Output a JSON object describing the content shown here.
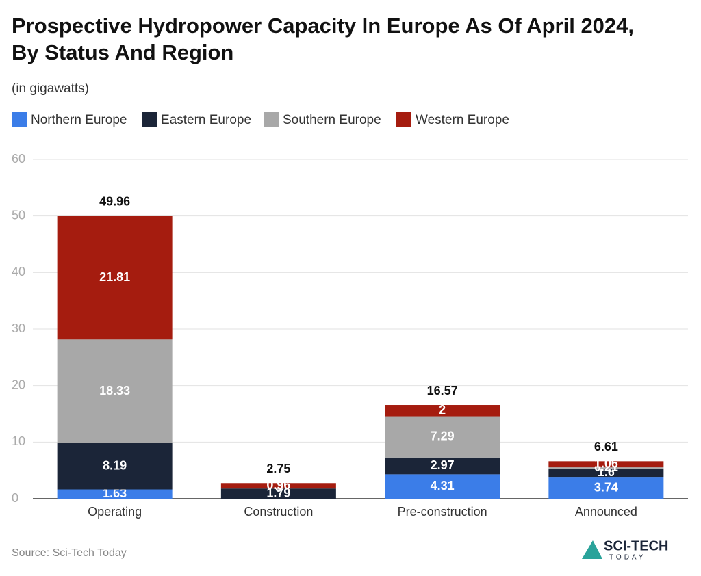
{
  "chart_data": {
    "type": "stacked_bar",
    "title": "Prospective Hydropower Capacity In Europe As Of April 2024, By Status And Region",
    "subtitle": "(in gigawatts)",
    "categories": [
      "Operating",
      "Construction",
      "Pre-construction",
      "Announced"
    ],
    "series": [
      {
        "name": "Northern Europe",
        "color": "#3b7de8",
        "values": [
          1.63,
          0,
          4.31,
          3.74
        ]
      },
      {
        "name": "Eastern Europe",
        "color": "#1b2538",
        "values": [
          8.19,
          1.79,
          2.97,
          1.6
        ]
      },
      {
        "name": "Southern Europe",
        "color": "#a8a8a8",
        "values": [
          18.33,
          0,
          7.29,
          0.21
        ]
      },
      {
        "name": "Western Europe",
        "color": "#a51c0f",
        "values": [
          21.81,
          0.96,
          2,
          1.06
        ]
      }
    ],
    "totals": [
      49.96,
      2.75,
      16.57,
      6.61
    ],
    "ylim": [
      0,
      60
    ],
    "yticks": [
      0,
      10,
      20,
      30,
      40,
      50,
      60
    ],
    "grid": true,
    "source": "Source: Sci-Tech Today",
    "logo": {
      "name": "SCI-TECH",
      "sub": "TODAY"
    }
  }
}
